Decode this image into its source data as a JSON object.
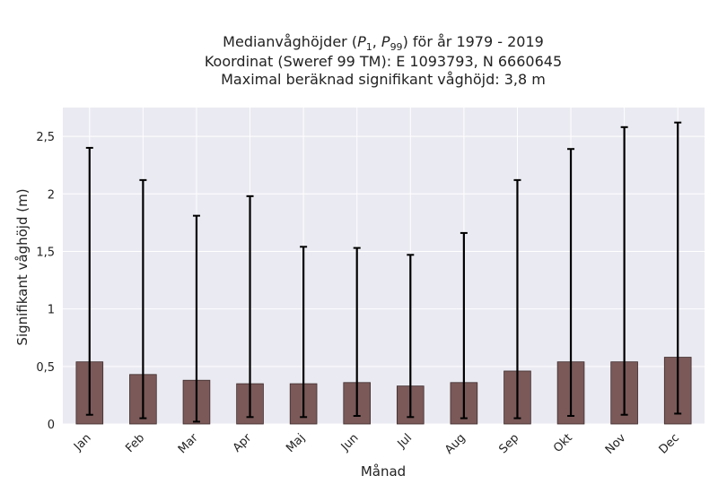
{
  "chart_data": {
    "type": "bar",
    "title_lines": [
      "Medianvåghöjder (P1, P99) för år 1979 - 2019",
      "Koordinat (Sweref 99 TM): E 1093793, N 6660645",
      "Maximal beräknad signifikant våghöjd: 3,8 m"
    ],
    "xlabel": "Månad",
    "ylabel": "Signifikant våghöjd (m)",
    "categories": [
      "Jan",
      "Feb",
      "Mar",
      "Apr",
      "Maj",
      "Jun",
      "Jul",
      "Aug",
      "Sep",
      "Okt",
      "Nov",
      "Dec"
    ],
    "series": [
      {
        "values": [
          0.54,
          0.43,
          0.38,
          0.35,
          0.35,
          0.36,
          0.33,
          0.36,
          0.46,
          0.54,
          0.54,
          0.58
        ],
        "error_low": [
          0.08,
          0.05,
          0.02,
          0.06,
          0.06,
          0.07,
          0.06,
          0.05,
          0.05,
          0.07,
          0.08,
          0.09
        ],
        "error_high": [
          2.4,
          2.12,
          1.81,
          1.98,
          1.54,
          1.53,
          1.47,
          1.66,
          2.12,
          2.39,
          2.58,
          2.62
        ]
      }
    ],
    "ylim": [
      0,
      2.75
    ],
    "yticks": [
      0,
      0.5,
      1,
      1.5,
      2,
      2.5
    ],
    "ytick_labels": [
      "0",
      "0,5",
      "1",
      "1,5",
      "2",
      "2,5"
    ],
    "grid": true,
    "colors": {
      "bar": "#7b5959",
      "bar_edge": "#3e2b2b",
      "plot_bg": "#eaeaf2",
      "grid": "#ffffff",
      "error": "#000000"
    }
  }
}
